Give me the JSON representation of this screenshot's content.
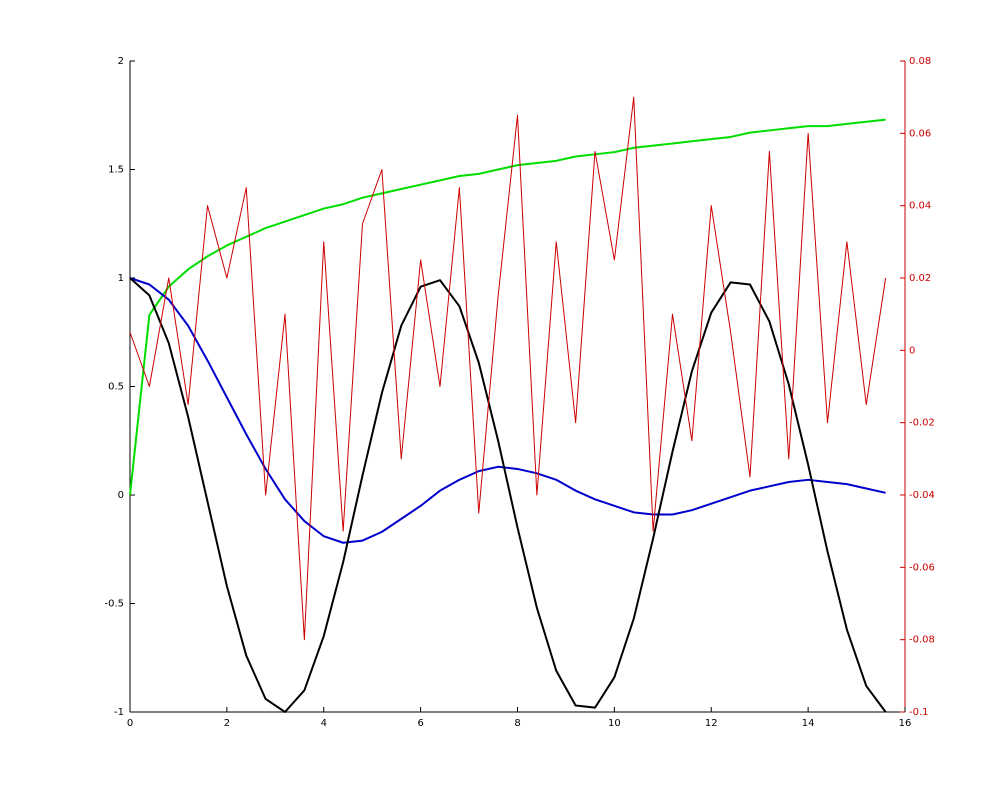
{
  "chart_data": {
    "type": "line",
    "x": [
      0,
      0.4,
      0.8,
      1.2,
      1.6,
      2.0,
      2.4,
      2.8,
      3.2,
      3.6,
      4.0,
      4.4,
      4.8,
      5.2,
      5.6,
      6.0,
      6.4,
      6.8,
      7.2,
      7.6,
      8.0,
      8.4,
      8.8,
      9.2,
      9.6,
      10.0,
      10.4,
      10.8,
      11.2,
      11.6,
      12.0,
      12.4,
      12.8,
      13.2,
      13.6,
      14.0,
      14.4,
      14.8,
      15.2,
      15.6
    ],
    "series": [
      {
        "color": "#00dd00",
        "values": [
          0,
          0.83,
          0.96,
          1.04,
          1.1,
          1.15,
          1.19,
          1.23,
          1.26,
          1.29,
          1.32,
          1.34,
          1.37,
          1.39,
          1.41,
          1.43,
          1.45,
          1.47,
          1.48,
          1.5,
          1.52,
          1.53,
          1.54,
          1.56,
          1.57,
          1.58,
          1.6,
          1.61,
          1.62,
          1.63,
          1.64,
          1.65,
          1.67,
          1.68,
          1.69,
          1.7,
          1.7,
          1.71,
          1.72,
          1.73
        ]
      },
      {
        "color": "#0000cc",
        "values": [
          1,
          0.97,
          0.9,
          0.78,
          0.62,
          0.45,
          0.28,
          0.12,
          -0.02,
          -0.12,
          -0.19,
          -0.22,
          -0.21,
          -0.17,
          -0.11,
          -0.05,
          0.02,
          0.07,
          0.11,
          0.13,
          0.12,
          0.1,
          0.07,
          0.02,
          -0.02,
          -0.05,
          -0.08,
          -0.09,
          -0.09,
          -0.07,
          -0.04,
          -0.01,
          0.02,
          0.04,
          0.06,
          0.07,
          0.06,
          0.05,
          0.03,
          0.01
        ]
      },
      {
        "color": "#000000",
        "values": [
          1,
          0.92,
          0.7,
          0.36,
          -0.03,
          -0.42,
          -0.74,
          -0.94,
          -1.0,
          -0.9,
          -0.65,
          -0.31,
          0.09,
          0.47,
          0.78,
          0.96,
          0.99,
          0.87,
          0.61,
          0.25,
          -0.15,
          -0.52,
          -0.81,
          -0.97,
          -0.98,
          -0.84,
          -0.57,
          -0.2,
          0.2,
          0.57,
          0.84,
          0.98,
          0.97,
          0.8,
          0.51,
          0.14,
          -0.26,
          -0.62,
          -0.88,
          -1.0
        ]
      },
      {
        "color": "#cc0000",
        "axis": "y2",
        "values": [
          0.005,
          -0.01,
          0.02,
          -0.015,
          0.04,
          0.02,
          0.045,
          -0.04,
          0.01,
          -0.08,
          0.03,
          -0.05,
          0.035,
          0.05,
          -0.03,
          0.025,
          -0.01,
          0.045,
          -0.045,
          0.015,
          0.065,
          -0.04,
          0.03,
          -0.02,
          0.055,
          0.025,
          0.07,
          -0.05,
          0.01,
          -0.025,
          0.04,
          0.005,
          -0.035,
          0.055,
          -0.03,
          0.06,
          -0.02,
          0.03,
          -0.015,
          0.02
        ]
      }
    ],
    "xlim": [
      0,
      16
    ],
    "xticks": [
      0,
      2,
      4,
      6,
      8,
      10,
      12,
      14,
      16
    ],
    "ylim": [
      -1,
      2
    ],
    "yticks": [
      -1,
      -0.5,
      0,
      0.5,
      1,
      1.5,
      2
    ],
    "y2lim": [
      -0.1,
      0.08
    ],
    "y2ticks": [
      -0.1,
      -0.08,
      -0.06,
      -0.04,
      -0.02,
      0,
      0.02,
      0.04,
      0.06,
      0.08
    ],
    "y2color": "#cc0000",
    "grid": false
  }
}
